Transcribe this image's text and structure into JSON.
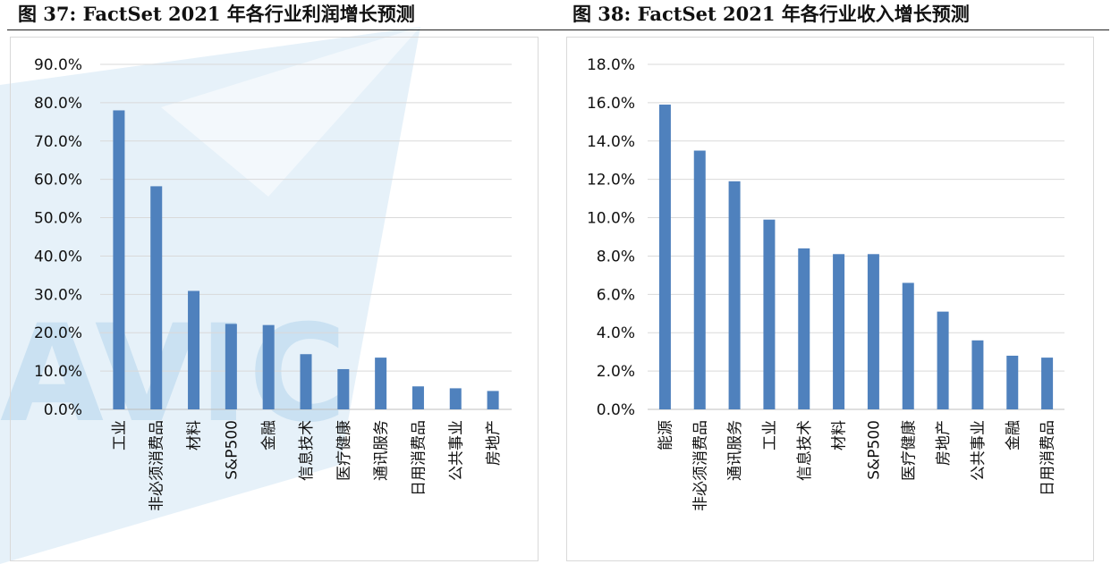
{
  "header": {
    "left_title": "图 37: FactSet 2021 年各行业利润增长预测",
    "right_title": "图 38: FactSet 2021 年各行业收入增长预测"
  },
  "watermark": {
    "text": "AVIC",
    "color": "#b8d8ee"
  },
  "colors": {
    "bar": "#4f81bd",
    "grid": "#d9d9d9",
    "axis": "#bfbfbf"
  },
  "chart_data": [
    {
      "type": "bar",
      "title": "",
      "xlabel": "",
      "ylabel": "",
      "categories": [
        "工业",
        "非必须消费品",
        "材料",
        "S&P500",
        "金融",
        "信息技术",
        "医疗健康",
        "通讯服务",
        "日用消费品",
        "公共事业",
        "房地产"
      ],
      "values": [
        78.0,
        58.2,
        30.9,
        22.3,
        22.0,
        14.4,
        10.5,
        13.5,
        6.0,
        5.5,
        4.8
      ],
      "ylim": [
        0,
        90
      ],
      "yticks": [
        0,
        10,
        20,
        30,
        40,
        50,
        60,
        70,
        80,
        90
      ],
      "ytick_labels": [
        "0.0%",
        "10.0%",
        "20.0%",
        "30.0%",
        "40.0%",
        "50.0%",
        "60.0%",
        "70.0%",
        "80.0%",
        "90.0%"
      ],
      "grid": true,
      "legend": "none"
    },
    {
      "type": "bar",
      "title": "",
      "xlabel": "",
      "ylabel": "",
      "categories": [
        "能源",
        "非必须消费品",
        "通讯服务",
        "工业",
        "信息技术",
        "材料",
        "S&P500",
        "医疗健康",
        "房地产",
        "公共事业",
        "金融",
        "日用消费品"
      ],
      "values": [
        15.9,
        13.5,
        11.9,
        9.9,
        8.4,
        8.1,
        8.1,
        6.6,
        5.1,
        3.6,
        2.8,
        2.7
      ],
      "ylim": [
        0,
        18
      ],
      "yticks": [
        0,
        2,
        4,
        6,
        8,
        10,
        12,
        14,
        16,
        18
      ],
      "ytick_labels": [
        "0.0%",
        "2.0%",
        "4.0%",
        "6.0%",
        "8.0%",
        "10.0%",
        "12.0%",
        "14.0%",
        "16.0%",
        "18.0%"
      ],
      "grid": true,
      "legend": "none"
    }
  ]
}
